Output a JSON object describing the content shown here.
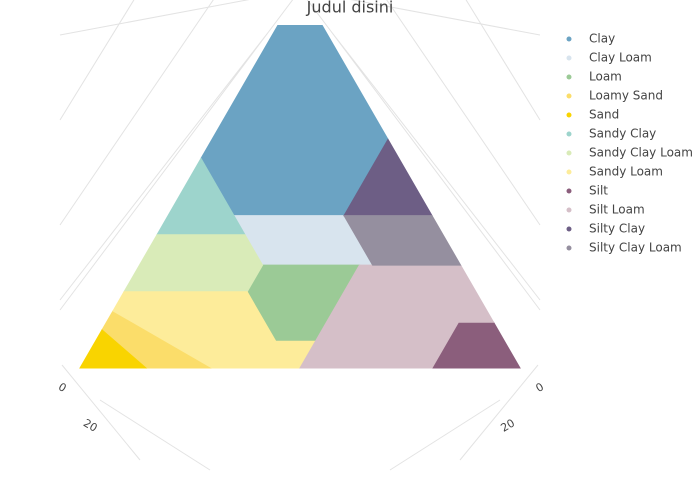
{
  "chart_data": {
    "type": "ternary",
    "title": "Judul disini",
    "series": [
      {
        "name": "Clay",
        "color": "#6ba3c3",
        "clay": [
          100,
          60,
          40,
          40,
          55
        ],
        "silt": [
          0,
          40,
          40,
          15,
          0
        ]
      },
      {
        "name": "Clay Loam",
        "color": "#d8e4ee",
        "clay": [
          27,
          27,
          40,
          40
        ],
        "silt": [
          28,
          53,
          40,
          15
        ]
      },
      {
        "name": "Loam",
        "color": "#9bca96",
        "clay": [
          7,
          7,
          27,
          27,
          20
        ],
        "silt": [
          41,
          50,
          50,
          28,
          28
        ]
      },
      {
        "name": "Loamy Sand",
        "color": "#fbdd6a",
        "clay": [
          0,
          0,
          15,
          10
        ],
        "silt": [
          15,
          30,
          0,
          0
        ]
      },
      {
        "name": "Sand",
        "color": "#f9d400",
        "clay": [
          0,
          0,
          10
        ],
        "silt": [
          0,
          15,
          0
        ]
      },
      {
        "name": "Sandy Clay",
        "color": "#9dd4cc",
        "clay": [
          35,
          55,
          35
        ],
        "silt": [
          0,
          0,
          20
        ]
      },
      {
        "name": "Sandy Clay Loam",
        "color": "#d9ebb8",
        "clay": [
          20,
          35,
          35,
          27,
          20
        ],
        "silt": [
          0,
          0,
          20,
          28,
          28
        ]
      },
      {
        "name": "Sandy Loam",
        "color": "#fdec9a",
        "clay": [
          0,
          0,
          7,
          7,
          20,
          20,
          15
        ],
        "silt": [
          30,
          50,
          50,
          41,
          28,
          0,
          0
        ]
      },
      {
        "name": "Silt",
        "color": "#8b5e7c",
        "clay": [
          0,
          0,
          12,
          12
        ],
        "silt": [
          80,
          100,
          88,
          80
        ]
      },
      {
        "name": "Silt Loam",
        "color": "#d5bfc8",
        "clay": [
          0,
          0,
          12,
          12,
          27,
          27
        ],
        "silt": [
          50,
          80,
          80,
          88,
          73,
          50
        ]
      },
      {
        "name": "Silty Clay",
        "color": "#6d5e85",
        "clay": [
          40,
          60,
          40
        ],
        "silt": [
          40,
          40,
          60
        ]
      },
      {
        "name": "Silty Clay Loam",
        "color": "#958f9f",
        "clay": [
          27,
          27,
          40,
          40
        ],
        "silt": [
          53,
          73,
          60,
          40
        ]
      }
    ],
    "left_ticks": [
      0,
      20
    ],
    "right_ticks": [
      0,
      20
    ]
  }
}
